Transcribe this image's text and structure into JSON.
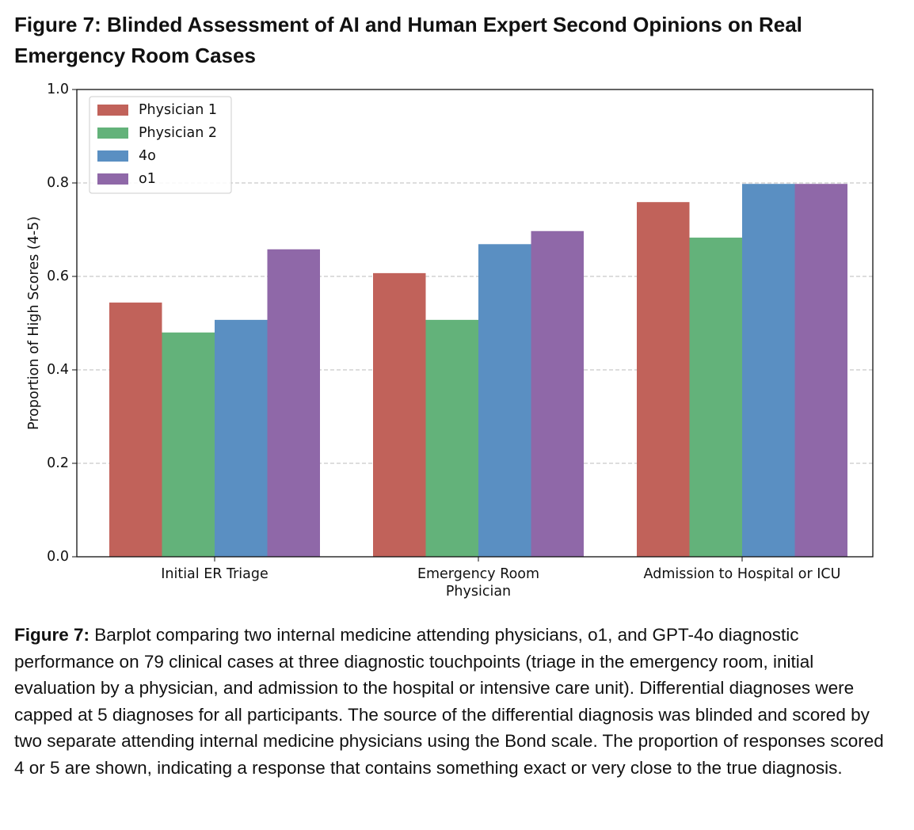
{
  "chart_data": {
    "type": "bar",
    "title": "Figure 7: Blinded Assessment of AI and Human Expert Second Opinions on Real Emergency Room Cases",
    "y_label": "Proportion of High Scores (4-5)",
    "categories": [
      "Initial ER Triage",
      "Emergency Room\nPhysician",
      "Admission to Hospital or ICU"
    ],
    "series": [
      {
        "name": "Physician 1",
        "color": "#c1625a",
        "values": [
          0.544,
          0.607,
          0.759
        ]
      },
      {
        "name": "Physician 2",
        "color": "#63b27a",
        "values": [
          0.48,
          0.507,
          0.683
        ]
      },
      {
        "name": "4o",
        "color": "#5a8fc2",
        "values": [
          0.507,
          0.669,
          0.798
        ]
      },
      {
        "name": "o1",
        "color": "#8f68a8",
        "values": [
          0.658,
          0.697,
          0.798
        ]
      }
    ],
    "ylim": [
      0,
      1
    ],
    "yticks": [
      {
        "value": 0,
        "label": "0.0"
      },
      0.2,
      0.4,
      0.6,
      0.8,
      {
        "value": 1,
        "label": "1.0"
      }
    ],
    "grid": true,
    "legend": "upper-left",
    "caption": {
      "label": "Figure 7:",
      "text": "Barplot comparing two internal medicine attending physicians, o1, and GPT-4o diagnostic performance on 79 clinical cases at three diagnostic touchpoints (triage in the emergency room, initial evaluation by a physician, and admission to the hospital or intensive care unit). Differential diagnoses were capped at 5 diagnoses for all participants. The source of the differential diagnosis was blinded and scored by two separate attending internal medicine physicians using the Bond scale. The proportion of responses scored 4 or 5 are shown, indicating a response that contains something exact or very close to the true diagnosis."
    }
  }
}
